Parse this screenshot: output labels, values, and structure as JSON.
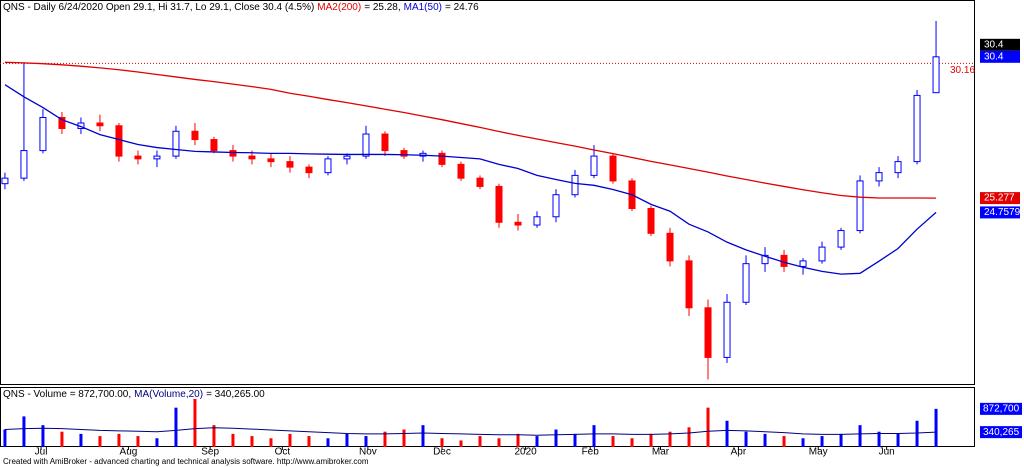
{
  "chart_data": {
    "type": "candlestick",
    "title": "QNS - Daily 6/24/2020 Open 29.1, Hi 31.7, Lo 29.1, Close 30.4 (4.5%)",
    "x": [
      0,
      1,
      2,
      3,
      4,
      5,
      6,
      7,
      8,
      9,
      10,
      11,
      12,
      13,
      14,
      15,
      16,
      17,
      18,
      19,
      20,
      21,
      22,
      23,
      24,
      25,
      26,
      27,
      28,
      29,
      30,
      31,
      32,
      33,
      34,
      35,
      36,
      37,
      38,
      39,
      40,
      41,
      42,
      43,
      44,
      45,
      46,
      47,
      48,
      49
    ],
    "open": [
      25.8,
      26.0,
      27.0,
      28.2,
      27.8,
      28.0,
      27.9,
      26.8,
      26.7,
      26.8,
      27.7,
      27.4,
      27.0,
      26.8,
      26.7,
      26.6,
      26.4,
      26.2,
      26.7,
      26.8,
      27.6,
      27.0,
      26.8,
      26.9,
      26.5,
      26.0,
      25.7,
      24.4,
      24.3,
      24.6,
      25.4,
      26.1,
      26.8,
      25.9,
      24.9,
      24.0,
      23.0,
      21.3,
      19.5,
      21.5,
      22.9,
      23.2,
      22.8,
      23.0,
      23.5,
      24.1,
      25.9,
      26.2,
      26.6,
      29.1
    ],
    "high": [
      26.2,
      30.2,
      28.5,
      28.4,
      28.2,
      28.3,
      28.0,
      27.0,
      27.0,
      27.9,
      28.0,
      27.5,
      27.2,
      27.0,
      26.9,
      26.8,
      26.5,
      26.8,
      26.9,
      27.9,
      27.7,
      27.1,
      27.0,
      27.0,
      26.6,
      26.1,
      25.8,
      24.7,
      24.8,
      25.6,
      26.3,
      27.2,
      26.9,
      26.0,
      25.0,
      24.2,
      23.2,
      21.6,
      21.8,
      23.2,
      23.5,
      23.4,
      23.1,
      23.7,
      24.2,
      26.1,
      26.4,
      26.8,
      29.2,
      31.7
    ],
    "low": [
      25.6,
      25.9,
      26.9,
      27.6,
      27.6,
      27.7,
      26.6,
      26.5,
      26.4,
      26.7,
      27.2,
      26.9,
      26.6,
      26.5,
      26.4,
      26.2,
      26.0,
      26.1,
      26.5,
      26.7,
      26.8,
      26.7,
      26.6,
      26.4,
      25.9,
      25.6,
      24.2,
      24.1,
      24.2,
      24.4,
      25.3,
      26.0,
      25.8,
      24.8,
      23.9,
      22.8,
      21.0,
      18.7,
      19.3,
      21.4,
      22.6,
      22.6,
      22.5,
      22.9,
      23.4,
      24.0,
      25.7,
      26.0,
      26.5,
      29.1
    ],
    "close": [
      26.0,
      27.0,
      28.2,
      27.8,
      28.0,
      27.9,
      26.8,
      26.7,
      26.8,
      27.7,
      27.4,
      27.0,
      26.8,
      26.7,
      26.6,
      26.4,
      26.2,
      26.7,
      26.8,
      27.6,
      27.0,
      26.8,
      26.9,
      26.5,
      26.0,
      25.7,
      24.4,
      24.3,
      24.6,
      25.4,
      26.1,
      26.8,
      25.9,
      24.9,
      24.0,
      23.0,
      21.3,
      19.5,
      21.5,
      22.9,
      23.2,
      22.8,
      23.0,
      23.5,
      24.1,
      25.9,
      26.2,
      26.6,
      29.0,
      30.4
    ],
    "up_color": "#0000ff",
    "down_color": "#ff0000",
    "series": [
      {
        "name": "MA2(200)",
        "readout": "= 25.28,",
        "color": "#e00000",
        "values": [
          30.2,
          30.18,
          30.15,
          30.11,
          30.06,
          30.0,
          29.93,
          29.85,
          29.76,
          29.67,
          29.58,
          29.5,
          29.41,
          29.32,
          29.22,
          29.08,
          28.97,
          28.85,
          28.74,
          28.62,
          28.5,
          28.38,
          28.25,
          28.12,
          27.98,
          27.84,
          27.69,
          27.55,
          27.42,
          27.29,
          27.16,
          27.02,
          26.89,
          26.75,
          26.61,
          26.48,
          26.35,
          26.22,
          26.08,
          25.95,
          25.82,
          25.7,
          25.58,
          25.47,
          25.37,
          25.31,
          25.28,
          25.28,
          25.28,
          25.277
        ]
      },
      {
        "name": "MA1(50)",
        "readout": "= 24.76",
        "color": "#0000d0",
        "values": [
          29.39,
          28.95,
          28.56,
          28.12,
          27.87,
          27.58,
          27.4,
          27.22,
          27.11,
          27.04,
          26.97,
          26.95,
          26.93,
          26.92,
          26.9,
          26.9,
          26.88,
          26.87,
          26.86,
          26.86,
          26.86,
          26.85,
          26.83,
          26.8,
          26.75,
          26.7,
          26.5,
          26.35,
          26.1,
          25.95,
          25.81,
          25.74,
          25.59,
          25.4,
          25.05,
          24.8,
          24.33,
          24.05,
          23.68,
          23.4,
          23.17,
          22.95,
          22.77,
          22.62,
          22.52,
          22.55,
          22.99,
          23.45,
          24.15,
          24.7579
        ]
      }
    ],
    "hline": {
      "value": 30.16,
      "color": "#e00000"
    },
    "price_labels": [
      {
        "value": 30.4,
        "color": "#000000"
      },
      {
        "value": 30.4,
        "color": "#0000ff"
      },
      {
        "value": 25.277,
        "color": "#e00000"
      },
      {
        "value": 24.7579,
        "color": "#0000ff"
      }
    ],
    "xlim": [
      -0.26,
      51.05
    ],
    "ylim": [
      18.5,
      32.46
    ],
    "xticks": [
      {
        "value": 1.9,
        "label": "Jul"
      },
      {
        "value": 6.5,
        "label": "Aug"
      },
      {
        "value": 10.8,
        "label": "Sep"
      },
      {
        "value": 14.6,
        "label": "Oct"
      },
      {
        "value": 19.1,
        "label": "Nov"
      },
      {
        "value": 23,
        "label": "Dec"
      },
      {
        "value": 27.4,
        "label": "2020"
      },
      {
        "value": 30.8,
        "label": "Feb"
      },
      {
        "value": 34.5,
        "label": "Mar"
      },
      {
        "value": 38.6,
        "label": "Apr"
      },
      {
        "value": 42.8,
        "label": "May"
      },
      {
        "value": 46.4,
        "label": "Jun"
      }
    ],
    "volume": {
      "title": "QNS - Volume = 872,700.00,",
      "color": "#0000ff",
      "ylim": [
        0,
        1350000
      ],
      "values": [
        400000,
        700000,
        500000,
        350000,
        300000,
        250000,
        300000,
        250000,
        200000,
        900000,
        1100000,
        500000,
        300000,
        250000,
        200000,
        300000,
        250000,
        200000,
        300000,
        250000,
        350000,
        400000,
        500000,
        200000,
        150000,
        250000,
        200000,
        300000,
        250000,
        400000,
        300000,
        500000,
        250000,
        200000,
        300000,
        350000,
        450000,
        900000,
        600000,
        350000,
        300000,
        250000,
        200000,
        250000,
        300000,
        500000,
        350000,
        300000,
        600000,
        872700
      ],
      "ma": {
        "name": "MA(Volume,20)",
        "readout": "= 340,265.00",
        "color": "#000080",
        "values": [
          400000,
          420000,
          430000,
          420000,
          400000,
          380000,
          370000,
          360000,
          350000,
          380000,
          420000,
          440000,
          430000,
          410000,
          390000,
          370000,
          350000,
          330000,
          310000,
          300000,
          300000,
          310000,
          320000,
          310000,
          300000,
          290000,
          280000,
          280000,
          270000,
          280000,
          290000,
          300000,
          300000,
          290000,
          290000,
          300000,
          320000,
          360000,
          380000,
          370000,
          350000,
          330000,
          300000,
          290000,
          290000,
          300000,
          310000,
          310000,
          320000,
          340265
        ]
      },
      "labels": [
        {
          "value": 872700,
          "label": "872,700"
        },
        {
          "value": 340265,
          "label": "340,265"
        }
      ]
    },
    "footer": "Created with AmiBroker - advanced charting and technical analysis software. http://www.amibroker.com"
  }
}
